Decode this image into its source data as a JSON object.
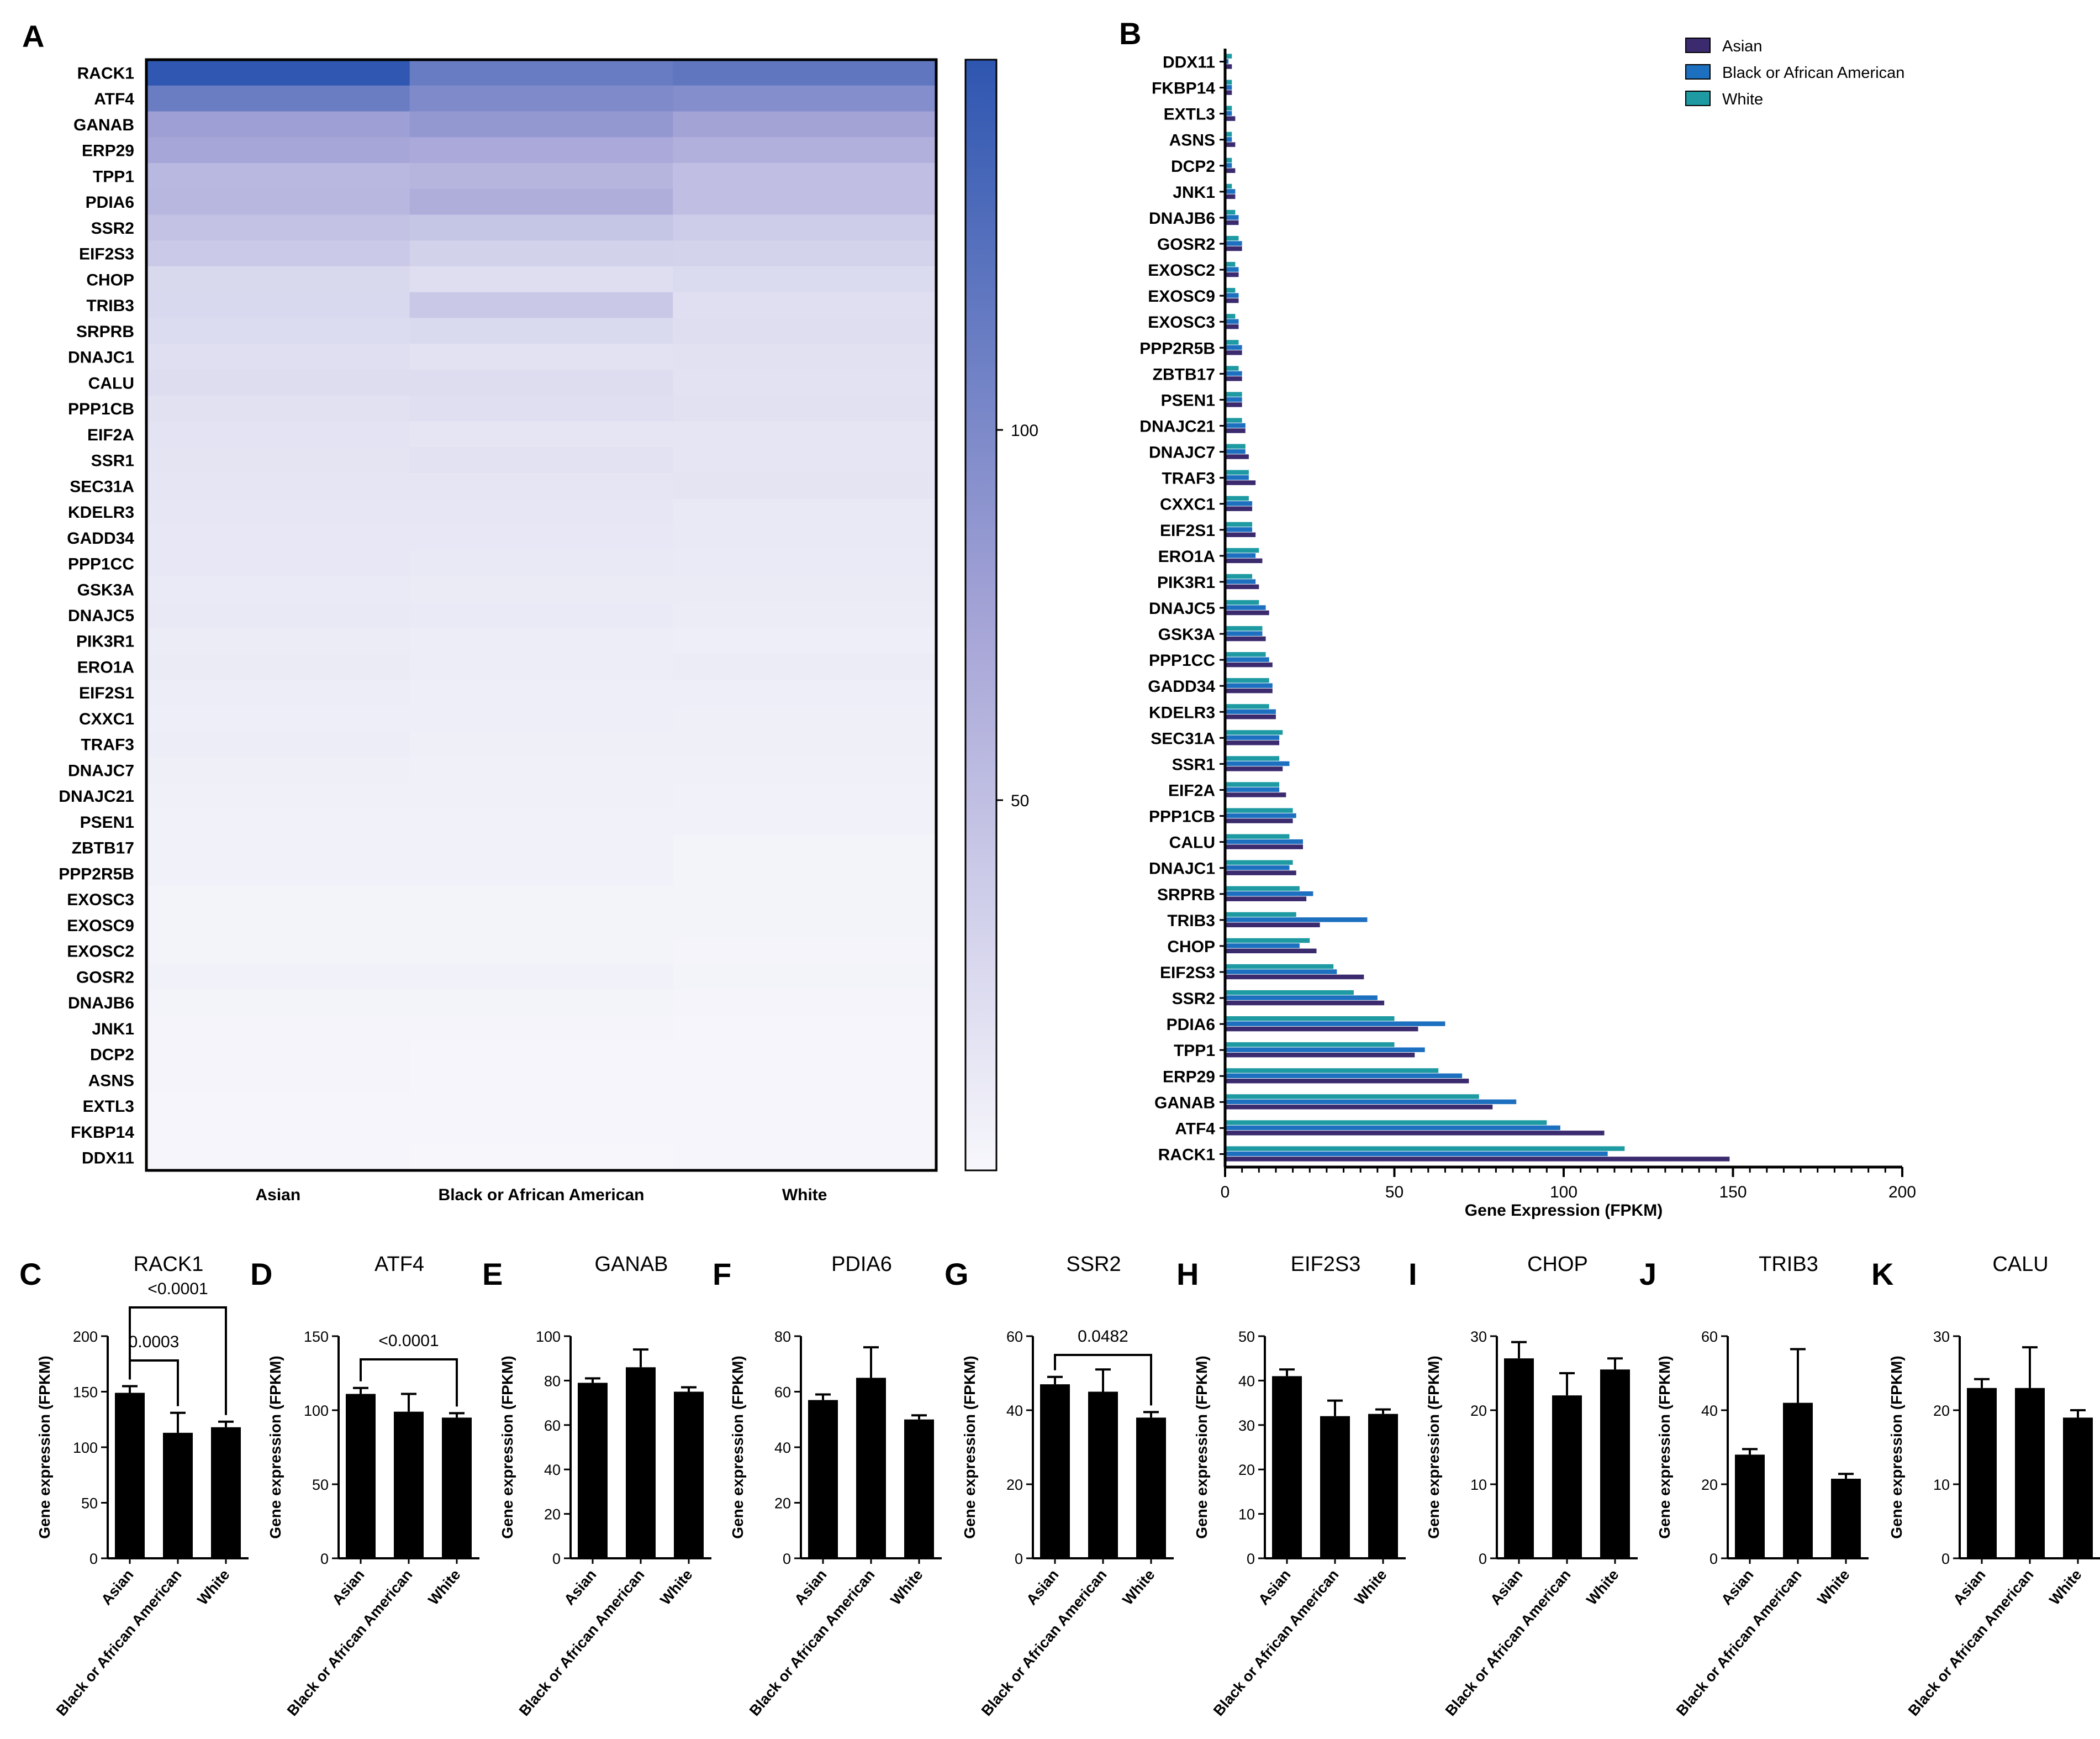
{
  "panel_labels": [
    "A",
    "B",
    "C",
    "D",
    "E",
    "F",
    "G",
    "H",
    "I",
    "J",
    "K"
  ],
  "colors": {
    "heat_low": "#f7f7fc",
    "heat_mid": "#a4a3d6",
    "heat_high": "#2e56b0",
    "asian": "#3b2a6e",
    "black": "#1d6fbf",
    "white": "#1e9aa2",
    "bar_small": "#000000"
  },
  "chart_data": [
    {
      "panel": "A",
      "type": "heatmap",
      "genes": [
        "RACK1",
        "ATF4",
        "GANAB",
        "ERP29",
        "TPP1",
        "PDIA6",
        "SSR2",
        "EIF2S3",
        "CHOP",
        "TRIB3",
        "SRPRB",
        "DNAJC1",
        "CALU",
        "PPP1CB",
        "EIF2A",
        "SSR1",
        "SEC31A",
        "KDELR3",
        "GADD34",
        "PPP1CC",
        "GSK3A",
        "DNAJC5",
        "PIK3R1",
        "ERO1A",
        "EIF2S1",
        "CXXC1",
        "TRAF3",
        "DNAJC7",
        "DNAJC21",
        "PSEN1",
        "ZBTB17",
        "PPP2R5B",
        "EXOSC3",
        "EXOSC9",
        "EXOSC2",
        "GOSR2",
        "DNAJB6",
        "JNK1",
        "DCP2",
        "ASNS",
        "EXTL3",
        "FKBP14",
        "DDX11"
      ],
      "groups": [
        "Asian",
        "Black or African American",
        "White"
      ],
      "values": [
        [
          149,
          113,
          118
        ],
        [
          112,
          99,
          95
        ],
        [
          79,
          86,
          75
        ],
        [
          72,
          70,
          63
        ],
        [
          56,
          59,
          50
        ],
        [
          57,
          65,
          50
        ],
        [
          47,
          45,
          38
        ],
        [
          41,
          33,
          32
        ],
        [
          27,
          22,
          25
        ],
        [
          28,
          42,
          21
        ],
        [
          24,
          26,
          22
        ],
        [
          21,
          19,
          20
        ],
        [
          23,
          23,
          19
        ],
        [
          20,
          21,
          20
        ],
        [
          18,
          16,
          16
        ],
        [
          17,
          19,
          16
        ],
        [
          16,
          16,
          17
        ],
        [
          15,
          15,
          13
        ],
        [
          14,
          14,
          13
        ],
        [
          14,
          13,
          12
        ],
        [
          12,
          11,
          11
        ],
        [
          13,
          12,
          10
        ],
        [
          10,
          9,
          8
        ],
        [
          11,
          9,
          10
        ],
        [
          9,
          8,
          8
        ],
        [
          8,
          8,
          7
        ],
        [
          9,
          7,
          7
        ],
        [
          7,
          6,
          6
        ],
        [
          6,
          6,
          5
        ],
        [
          5,
          5,
          5
        ],
        [
          5,
          5,
          4
        ],
        [
          5,
          5,
          4
        ],
        [
          4,
          4,
          4
        ],
        [
          4,
          4,
          4
        ],
        [
          4,
          4,
          3
        ],
        [
          5,
          5,
          4
        ],
        [
          4,
          4,
          3
        ],
        [
          3,
          3,
          2
        ],
        [
          3,
          2,
          2
        ],
        [
          3,
          2,
          2
        ],
        [
          2,
          2,
          2
        ],
        [
          2,
          2,
          2
        ],
        [
          2,
          1,
          2
        ]
      ],
      "colorbar": {
        "ticks": [
          50,
          100
        ],
        "range": [
          0,
          150
        ]
      }
    },
    {
      "panel": "B",
      "type": "bar",
      "orientation": "horizontal",
      "categories": [
        "DDX11",
        "FKBP14",
        "EXTL3",
        "ASNS",
        "DCP2",
        "JNK1",
        "DNAJB6",
        "GOSR2",
        "EXOSC2",
        "EXOSC9",
        "EXOSC3",
        "PPP2R5B",
        "ZBTB17",
        "PSEN1",
        "DNAJC21",
        "DNAJC7",
        "TRAF3",
        "CXXC1",
        "EIF2S1",
        "ERO1A",
        "PIK3R1",
        "DNAJC5",
        "GSK3A",
        "PPP1CC",
        "GADD34",
        "KDELR3",
        "SEC31A",
        "SSR1",
        "EIF2A",
        "PPP1CB",
        "CALU",
        "DNAJC1",
        "SRPRB",
        "TRIB3",
        "CHOP",
        "EIF2S3",
        "SSR2",
        "PDIA6",
        "TPP1",
        "ERP29",
        "GANAB",
        "ATF4",
        "RACK1"
      ],
      "series": [
        {
          "name": "Asian",
          "values": [
            2,
            2,
            3,
            3,
            3,
            3,
            4,
            5,
            4,
            4,
            4,
            5,
            5,
            5,
            6,
            7,
            9,
            8,
            9,
            11,
            10,
            13,
            12,
            14,
            14,
            15,
            16,
            17,
            18,
            20,
            23,
            21,
            24,
            28,
            27,
            41,
            47,
            57,
            56,
            72,
            79,
            112,
            149
          ]
        },
        {
          "name": "Black or African American",
          "values": [
            1,
            2,
            2,
            2,
            2,
            3,
            4,
            5,
            4,
            4,
            4,
            5,
            5,
            5,
            6,
            6,
            7,
            8,
            8,
            9,
            9,
            12,
            11,
            13,
            14,
            15,
            16,
            19,
            16,
            21,
            23,
            19,
            26,
            42,
            22,
            33,
            45,
            65,
            59,
            70,
            86,
            99,
            113
          ]
        },
        {
          "name": "White",
          "values": [
            2,
            2,
            2,
            2,
            2,
            2,
            3,
            4,
            3,
            3,
            3,
            4,
            4,
            5,
            5,
            6,
            7,
            7,
            8,
            10,
            8,
            10,
            11,
            12,
            13,
            13,
            17,
            16,
            16,
            20,
            19,
            20,
            22,
            21,
            25,
            32,
            38,
            50,
            50,
            63,
            75,
            95,
            118
          ]
        }
      ],
      "xlabel": "Gene Expression (FPKM)",
      "xlim": [
        0,
        200
      ],
      "xticks": [
        0,
        50,
        100,
        150,
        200
      ],
      "legend_position": "top-right"
    },
    {
      "panel": "C",
      "type": "bar",
      "title": "RACK1",
      "categories": [
        "Asian",
        "Black or African American",
        "White"
      ],
      "values": [
        149,
        113,
        118
      ],
      "errors": [
        6,
        18,
        5
      ],
      "ylabel": "Gene expression (FPKM)",
      "ylim": [
        0,
        200
      ],
      "yticks": [
        0,
        50,
        100,
        150,
        200
      ],
      "comparisons": [
        {
          "from": 0,
          "to": 1,
          "label": "0.0003"
        },
        {
          "from": 0,
          "to": 2,
          "label": "<0.0001"
        }
      ]
    },
    {
      "panel": "D",
      "type": "bar",
      "title": "ATF4",
      "categories": [
        "Asian",
        "Black or African American",
        "White"
      ],
      "values": [
        111,
        99,
        95
      ],
      "errors": [
        4,
        12,
        3
      ],
      "ylabel": "Gene expression (FPKM)",
      "ylim": [
        0,
        150
      ],
      "yticks": [
        0,
        50,
        100,
        150
      ],
      "comparisons": [
        {
          "from": 0,
          "to": 2,
          "label": "<0.0001"
        }
      ]
    },
    {
      "panel": "E",
      "type": "bar",
      "title": "GANAB",
      "categories": [
        "Asian",
        "Black or African American",
        "White"
      ],
      "values": [
        79,
        86,
        75
      ],
      "errors": [
        2,
        8,
        2
      ],
      "ylabel": "Gene expression (FPKM)",
      "ylim": [
        0,
        100
      ],
      "yticks": [
        0,
        20,
        40,
        60,
        80,
        100
      ],
      "comparisons": []
    },
    {
      "panel": "F",
      "type": "bar",
      "title": "PDIA6",
      "categories": [
        "Asian",
        "Black or African American",
        "White"
      ],
      "values": [
        57,
        65,
        50
      ],
      "errors": [
        2,
        11,
        1.5
      ],
      "ylabel": "Gene expression (FPKM)",
      "ylim": [
        0,
        80
      ],
      "yticks": [
        0,
        20,
        40,
        60,
        80
      ],
      "comparisons": []
    },
    {
      "panel": "G",
      "type": "bar",
      "title": "SSR2",
      "categories": [
        "Asian",
        "Black or African American",
        "White"
      ],
      "values": [
        47,
        45,
        38
      ],
      "errors": [
        2,
        6,
        1.5
      ],
      "ylabel": "Gene expression (FPKM)",
      "ylim": [
        0,
        60
      ],
      "yticks": [
        0,
        20,
        40,
        60
      ],
      "comparisons": [
        {
          "from": 0,
          "to": 2,
          "label": "0.0482"
        }
      ]
    },
    {
      "panel": "H",
      "type": "bar",
      "title": "EIF2S3",
      "categories": [
        "Asian",
        "Black or African American",
        "White"
      ],
      "values": [
        41,
        32,
        32.5
      ],
      "errors": [
        1.5,
        3.5,
        1
      ],
      "ylabel": "Gene expression (FPKM)",
      "ylim": [
        0,
        50
      ],
      "yticks": [
        0,
        10,
        20,
        30,
        40,
        50
      ],
      "comparisons": []
    },
    {
      "panel": "I",
      "type": "bar",
      "title": "CHOP",
      "categories": [
        "Asian",
        "Black or African American",
        "White"
      ],
      "values": [
        27,
        22,
        25.5
      ],
      "errors": [
        2.2,
        3,
        1.5
      ],
      "ylabel": "Gene expression (FPKM)",
      "ylim": [
        0,
        30
      ],
      "yticks": [
        0,
        10,
        20,
        30
      ],
      "comparisons": []
    },
    {
      "panel": "J",
      "type": "bar",
      "title": "TRIB3",
      "categories": [
        "Asian",
        "Black or African American",
        "White"
      ],
      "values": [
        28,
        42,
        21.5
      ],
      "errors": [
        1.5,
        14.5,
        1.3
      ],
      "ylabel": "Gene expression (FPKM)",
      "ylim": [
        0,
        60
      ],
      "yticks": [
        0,
        20,
        40,
        60
      ],
      "comparisons": []
    },
    {
      "panel": "K",
      "type": "bar",
      "title": "CALU",
      "categories": [
        "Asian",
        "Black or African American",
        "White"
      ],
      "values": [
        23,
        23,
        19
      ],
      "errors": [
        1.2,
        5.5,
        1
      ],
      "ylabel": "Gene expression (FPKM)",
      "ylim": [
        0,
        30
      ],
      "yticks": [
        0,
        10,
        20,
        30
      ],
      "comparisons": []
    }
  ]
}
